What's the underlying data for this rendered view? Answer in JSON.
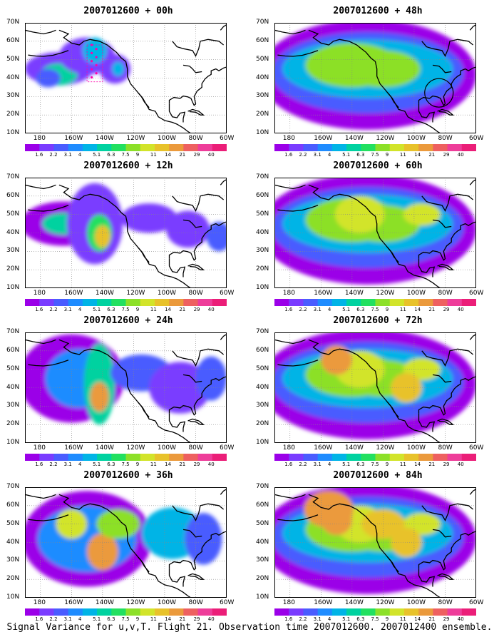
{
  "colors": {
    "scale": [
      "#9b00e8",
      "#7a3cff",
      "#4a5cff",
      "#1f8cff",
      "#00b4e6",
      "#00d2a0",
      "#22e060",
      "#8ce028",
      "#d2e42a",
      "#e8c22a",
      "#eb9a3c",
      "#ee6060",
      "#ee3d9a",
      "#eb1e78"
    ],
    "land_outline": "#000000",
    "grid": "#888888",
    "track_marker": "#ff00aa"
  },
  "colorbar_labels": [
    "1.6",
    "2.2",
    "3.1",
    "4",
    "5.1",
    "6.3",
    "7.5",
    "9",
    "11",
    "14",
    "21",
    "29",
    "40"
  ],
  "lat_labels": [
    "70N",
    "60N",
    "50N",
    "40N",
    "30N",
    "20N",
    "10N"
  ],
  "lon_labels": [
    "180",
    "160W",
    "140W",
    "120W",
    "100W",
    "80W",
    "60W"
  ],
  "panels": [
    {
      "title": "2007012600 + 00h",
      "lead": 0
    },
    {
      "title": "2007012600 + 48h",
      "lead": 48
    },
    {
      "title": "2007012600 + 12h",
      "lead": 12
    },
    {
      "title": "2007012600 + 60h",
      "lead": 60
    },
    {
      "title": "2007012600 + 24h",
      "lead": 24
    },
    {
      "title": "2007012600 + 72h",
      "lead": 72
    },
    {
      "title": "2007012600 + 36h",
      "lead": 36
    },
    {
      "title": "2007012600 + 84h",
      "lead": 84
    }
  ],
  "caption": "Signal Variance for u,v,T. Flight 21. Observation time 2007012600. 2007012400 ensemble."
}
